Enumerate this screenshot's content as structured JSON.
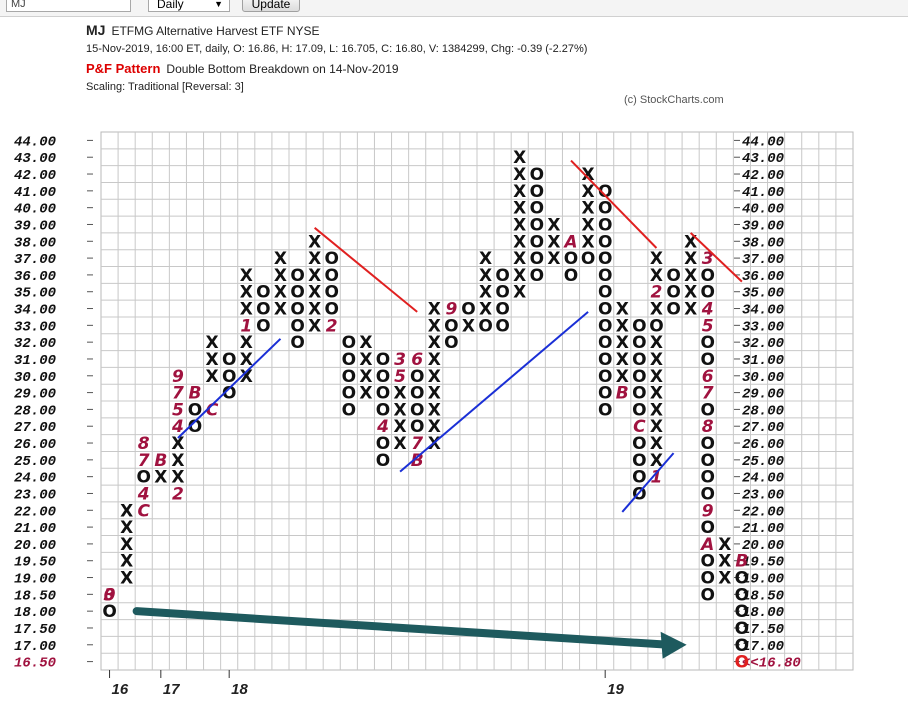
{
  "toolbar": {
    "symbol_value": "MJ",
    "period_value": "Daily",
    "update_label": "Update"
  },
  "header": {
    "symbol": "MJ",
    "name": "ETFMG Alternative Harvest ETF  NYSE",
    "quote": "15-Nov-2019, 16:00 ET, daily, O: 16.86, H: 17.09, L: 16.705, C: 16.80, V: 1384299, Chg: -0.39 (-2.27%)",
    "pattern_label": "P&F Pattern",
    "pattern_text": "Double Bottom Breakdown on 14-Nov-2019",
    "scaling": "Scaling: Traditional [Reversal: 3]",
    "credit": "(c) StockCharts.com"
  },
  "colors": {
    "x": "#111111",
    "o": "#111111",
    "month": "#a0123f",
    "last": "#e02020",
    "trend_red": "#e02020",
    "trend_blue": "#1a2fd6",
    "arrow": "#1e5a5e",
    "grid": "#c8c8c8"
  },
  "chart_data": {
    "type": "point-and-figure",
    "box_levels": [
      "44.00",
      "43.00",
      "42.00",
      "41.00",
      "40.00",
      "39.00",
      "38.00",
      "37.00",
      "36.00",
      "35.00",
      "34.00",
      "33.00",
      "32.00",
      "31.00",
      "30.00",
      "29.00",
      "28.00",
      "27.00",
      "26.00",
      "25.00",
      "24.00",
      "23.00",
      "22.00",
      "21.00",
      "20.00",
      "19.50",
      "19.00",
      "18.50",
      "18.00",
      "17.50",
      "17.00",
      "16.50"
    ],
    "right_last_label": "<<16.80",
    "x_tick_labels": [
      {
        "col": 0,
        "label": "16"
      },
      {
        "col": 3,
        "label": "17"
      },
      {
        "col": 7,
        "label": "18"
      },
      {
        "col": 29,
        "label": "19"
      }
    ],
    "columns": [
      {
        "type": "O",
        "cells": [
          "0|18.50",
          "3|18.50",
          "O|18.00"
        ]
      },
      {
        "type": "X",
        "cells": [
          "X|22.00",
          "X|21.00",
          "X|20.00",
          "X|19.50",
          "X|19.00"
        ]
      },
      {
        "type": "O",
        "cells": [
          "8|26.00",
          "7|25.00",
          "O|24.00",
          "4|23.00",
          "C|22.00"
        ]
      },
      {
        "type": "X",
        "cells": [
          "B|25.00",
          "X|24.00"
        ]
      },
      {
        "type": "O",
        "cells": [
          "9|30.00",
          "7|29.00",
          "5|28.00",
          "4|27.00",
          "X|26.00",
          "X|25.00",
          "X|24.00",
          "2|23.00"
        ]
      },
      {
        "type": "X",
        "cells": [
          "B|29.00",
          "O|28.00",
          "O|27.00"
        ]
      },
      {
        "type": "O",
        "cells": [
          "X|32.00",
          "X|31.00",
          "X|30.00",
          "C|28.00"
        ]
      },
      {
        "type": "X",
        "cells": [
          "O|31.00",
          "O|30.00",
          "O|29.00"
        ]
      },
      {
        "type": "O",
        "cells": [
          "X|36.00",
          "X|35.00",
          "X|34.00",
          "1|33.00",
          "X|32.00",
          "X|31.00",
          "X|30.00"
        ]
      },
      {
        "type": "X",
        "cells": [
          "O|35.00",
          "O|34.00",
          "O|33.00"
        ]
      },
      {
        "type": "O",
        "cells": [
          "X|37.00",
          "X|36.00",
          "X|35.00",
          "X|34.00"
        ]
      },
      {
        "type": "X",
        "cells": [
          "O|36.00",
          "O|35.00",
          "O|34.00",
          "O|33.00",
          "O|32.00"
        ]
      },
      {
        "type": "O",
        "cells": [
          "X|38.00",
          "X|37.00",
          "X|36.00",
          "X|35.00",
          "X|34.00",
          "X|33.00"
        ]
      },
      {
        "type": "X",
        "cells": [
          "O|37.00",
          "O|36.00",
          "O|35.00",
          "O|34.00",
          "2|33.00"
        ]
      },
      {
        "type": "O",
        "cells": [
          "O|32.00",
          "O|31.00",
          "O|30.00",
          "O|29.00",
          "O|28.00"
        ]
      },
      {
        "type": "X",
        "cells": [
          "X|32.00",
          "X|31.00",
          "X|30.00",
          "X|29.00"
        ]
      },
      {
        "type": "O",
        "cells": [
          "O|31.00",
          "O|30.00",
          "O|29.00",
          "O|28.00",
          "4|27.00",
          "O|26.00",
          "O|25.00"
        ]
      },
      {
        "type": "X",
        "cells": [
          "3|31.00",
          "5|30.00",
          "X|29.00",
          "X|28.00",
          "X|27.00",
          "X|26.00"
        ]
      },
      {
        "type": "O",
        "cells": [
          "6|31.00",
          "O|30.00",
          "O|29.00",
          "O|28.00",
          "O|27.00",
          "7|26.00",
          "B|25.00"
        ]
      },
      {
        "type": "X",
        "cells": [
          "X|34.00",
          "X|33.00",
          "X|32.00",
          "X|31.00",
          "X|30.00",
          "X|29.00",
          "X|28.00",
          "X|27.00",
          "X|26.00"
        ]
      },
      {
        "type": "O",
        "cells": [
          "9|34.00",
          "O|33.00",
          "O|32.00"
        ]
      },
      {
        "type": "X",
        "cells": [
          "O|34.00",
          "X|33.00"
        ]
      },
      {
        "type": "O",
        "cells": [
          "X|37.00",
          "X|36.00",
          "X|35.00",
          "X|34.00",
          "O|33.00"
        ]
      },
      {
        "type": "X",
        "cells": [
          "O|36.00",
          "O|35.00",
          "O|34.00",
          "O|33.00"
        ]
      },
      {
        "type": "O",
        "cells": [
          "X|43.00",
          "X|42.00",
          "X|41.00",
          "X|40.00",
          "X|39.00",
          "X|38.00",
          "X|37.00",
          "X|36.00",
          "X|35.00"
        ]
      },
      {
        "type": "X",
        "cells": [
          "O|42.00",
          "O|41.00",
          "O|40.00",
          "O|39.00",
          "O|38.00",
          "O|37.00",
          "O|36.00"
        ]
      },
      {
        "type": "O",
        "cells": [
          "X|39.00",
          "X|38.00",
          "X|37.00"
        ]
      },
      {
        "type": "X",
        "cells": [
          "A|38.00",
          "O|37.00",
          "O|36.00"
        ]
      },
      {
        "type": "O",
        "cells": [
          "X|42.00",
          "X|41.00",
          "X|40.00",
          "X|39.00",
          "X|38.00",
          "O|37.00"
        ]
      },
      {
        "type": "X",
        "cells": [
          "O|41.00",
          "O|40.00",
          "O|39.00",
          "O|38.00",
          "O|37.00",
          "O|36.00",
          "O|35.00",
          "O|34.00",
          "O|33.00",
          "O|32.00",
          "O|31.00",
          "O|30.00",
          "O|29.00",
          "O|28.00"
        ]
      },
      {
        "type": "O",
        "cells": [
          "X|34.00",
          "X|33.00",
          "X|32.00",
          "X|31.00",
          "X|30.00",
          "B|29.00"
        ]
      },
      {
        "type": "X",
        "cells": [
          "O|33.00",
          "O|32.00",
          "O|31.00",
          "O|30.00",
          "O|29.00",
          "O|28.00",
          "C|27.00",
          "O|26.00",
          "O|25.00",
          "O|24.00",
          "O|23.00"
        ]
      },
      {
        "type": "O",
        "cells": [
          "X|37.00",
          "X|36.00",
          "2|35.00",
          "X|34.00",
          "O|33.00",
          "X|32.00",
          "X|31.00",
          "X|30.00",
          "X|29.00",
          "X|28.00",
          "X|27.00",
          "X|26.00",
          "X|25.00",
          "1|24.00"
        ]
      },
      {
        "type": "X",
        "cells": [
          "O|36.00",
          "O|35.00",
          "O|34.00"
        ]
      },
      {
        "type": "O",
        "cells": [
          "X|38.00",
          "X|37.00",
          "X|36.00",
          "X|35.00",
          "X|34.00"
        ]
      },
      {
        "type": "X",
        "cells": [
          "3|37.00",
          "O|36.00",
          "O|35.00",
          "4|34.00",
          "5|33.00",
          "O|32.00",
          "O|31.00",
          "6|30.00",
          "7|29.00",
          "O|28.00",
          "8|27.00",
          "O|26.00",
          "O|25.00",
          "O|24.00",
          "O|23.00",
          "9|22.00",
          "O|21.00",
          "A|20.00",
          "O|19.50",
          "O|19.00",
          "O|18.50"
        ]
      },
      {
        "type": "O",
        "cells": [
          "X|20.00",
          "X|19.50",
          "X|19.00"
        ]
      },
      {
        "type": "X",
        "cells": [
          "B|19.50",
          "O|19.00",
          "O|18.50",
          "O|18.00",
          "O|17.50",
          "O|17.00",
          "O*|16.50"
        ]
      }
    ],
    "trend_lines": [
      {
        "color": "red",
        "from": [
          12,
          38.8
        ],
        "to": [
          18,
          33.8
        ]
      },
      {
        "color": "red",
        "from": [
          27,
          42.8
        ],
        "to": [
          32,
          37.6
        ]
      },
      {
        "color": "red",
        "from": [
          34,
          38.5
        ],
        "to": [
          37,
          35.6
        ]
      },
      {
        "color": "blue",
        "from": [
          4,
          26.3
        ],
        "to": [
          10,
          32.2
        ]
      },
      {
        "color": "blue",
        "from": [
          17,
          24.3
        ],
        "to": [
          28,
          33.8
        ]
      },
      {
        "color": "blue",
        "from": [
          30,
          21.9
        ],
        "to": [
          33,
          25.4
        ]
      }
    ],
    "arrow": {
      "from": [
        1,
        18.0
      ],
      "to": [
        34,
        17.0
      ]
    }
  }
}
